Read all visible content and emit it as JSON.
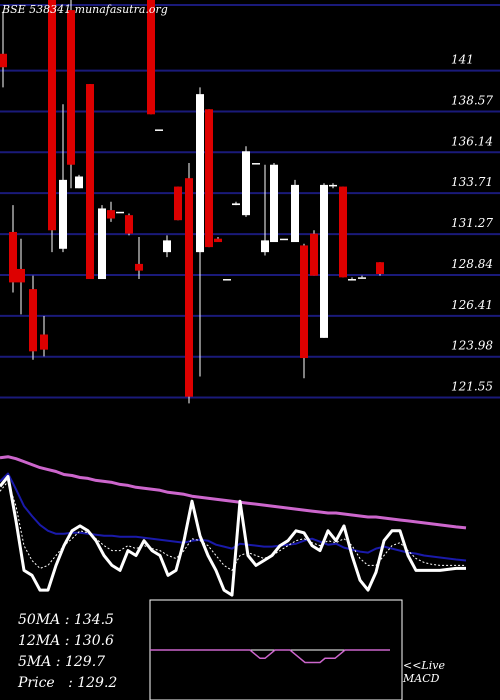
{
  "watermark": "BSE 538341 munafasutra.org",
  "chart_data": {
    "type": "candlestick",
    "ylim": [
      119.5,
      145.2
    ],
    "y_ticks": [
      {
        "label": "141",
        "value": 141
      },
      {
        "label": "138.57",
        "value": 138.57
      },
      {
        "label": "136.14",
        "value": 136.14
      },
      {
        "label": "133.71",
        "value": 133.71
      },
      {
        "label": "131.27",
        "value": 131.27
      },
      {
        "label": "128.84",
        "value": 128.84
      },
      {
        "label": "126.41",
        "value": 126.41
      },
      {
        "label": "123.98",
        "value": 123.98
      },
      {
        "label": "121.55",
        "value": 121.55
      }
    ],
    "up_color": "#ffffff",
    "down_color": "#dd0000",
    "grid_color": "#1a1a7a",
    "candles": [
      {
        "x": 3,
        "open": 142.0,
        "high": 144.5,
        "low": 140.0,
        "close": 141.2
      },
      {
        "x": 13,
        "open": 131.4,
        "high": 133.0,
        "low": 127.8,
        "close": 128.4
      },
      {
        "x": 21,
        "open": 129.2,
        "high": 131.0,
        "low": 126.5,
        "close": 128.4
      },
      {
        "x": 33,
        "open": 128.0,
        "high": 128.8,
        "low": 123.8,
        "close": 124.3
      },
      {
        "x": 44,
        "open": 125.3,
        "high": 126.4,
        "low": 124.0,
        "close": 124.4
      },
      {
        "x": 52,
        "open": 145.2,
        "high": 145.2,
        "low": 130.2,
        "close": 131.5
      },
      {
        "x": 63,
        "open": 130.4,
        "high": 139.0,
        "low": 130.2,
        "close": 134.5
      },
      {
        "x": 71,
        "open": 144.6,
        "high": 145.2,
        "low": 134.0,
        "close": 135.4
      },
      {
        "x": 79,
        "open": 134.0,
        "high": 134.8,
        "low": 134.0,
        "close": 134.7
      },
      {
        "x": 90,
        "open": 140.2,
        "high": 140.2,
        "low": 128.6,
        "close": 128.6
      },
      {
        "x": 102,
        "open": 128.6,
        "high": 133.0,
        "low": 128.6,
        "close": 132.8
      },
      {
        "x": 111,
        "open": 132.7,
        "high": 133.2,
        "low": 132.0,
        "close": 132.2
      },
      {
        "x": 120,
        "open": 132.6,
        "high": 132.6,
        "low": 132.6,
        "close": 132.6
      },
      {
        "x": 129,
        "open": 132.4,
        "high": 132.5,
        "low": 131.2,
        "close": 131.3
      },
      {
        "x": 139,
        "open": 129.5,
        "high": 131.1,
        "low": 128.6,
        "close": 129.1
      },
      {
        "x": 151,
        "open": 145.2,
        "high": 145.2,
        "low": 138.4,
        "close": 138.4
      },
      {
        "x": 159,
        "open": 137.5,
        "high": 137.5,
        "low": 137.5,
        "close": 137.5
      },
      {
        "x": 167,
        "open": 130.2,
        "high": 131.2,
        "low": 129.9,
        "close": 130.9
      },
      {
        "x": 178,
        "open": 134.1,
        "high": 134.1,
        "low": 132.1,
        "close": 132.1
      },
      {
        "x": 189,
        "open": 134.6,
        "high": 135.5,
        "low": 121.2,
        "close": 121.6
      },
      {
        "x": 200,
        "open": 130.2,
        "high": 140.0,
        "low": 122.8,
        "close": 139.6
      },
      {
        "x": 209,
        "open": 138.7,
        "high": 138.7,
        "low": 130.5,
        "close": 130.5
      },
      {
        "x": 218,
        "open": 131.0,
        "high": 131.1,
        "low": 130.8,
        "close": 130.8
      },
      {
        "x": 227,
        "open": 128.6,
        "high": 128.6,
        "low": 128.6,
        "close": 128.6
      },
      {
        "x": 236,
        "open": 133.0,
        "high": 133.2,
        "low": 133.0,
        "close": 133.1
      },
      {
        "x": 246,
        "open": 132.4,
        "high": 136.5,
        "low": 132.3,
        "close": 136.2
      },
      {
        "x": 256,
        "open": 135.5,
        "high": 135.5,
        "low": 135.5,
        "close": 135.5
      },
      {
        "x": 265,
        "open": 130.2,
        "high": 135.4,
        "low": 130.0,
        "close": 130.9
      },
      {
        "x": 274,
        "open": 130.8,
        "high": 135.5,
        "low": 130.8,
        "close": 135.4
      },
      {
        "x": 284,
        "open": 131.0,
        "high": 131.0,
        "low": 131.0,
        "close": 131.0
      },
      {
        "x": 295,
        "open": 130.8,
        "high": 134.5,
        "low": 130.8,
        "close": 134.2
      },
      {
        "x": 304,
        "open": 130.6,
        "high": 130.7,
        "low": 122.7,
        "close": 123.9
      },
      {
        "x": 314,
        "open": 131.3,
        "high": 131.5,
        "low": 128.8,
        "close": 128.8
      },
      {
        "x": 324,
        "open": 125.1,
        "high": 134.3,
        "low": 125.1,
        "close": 134.2
      },
      {
        "x": 333,
        "open": 134.2,
        "high": 134.3,
        "low": 134.0,
        "close": 134.2
      },
      {
        "x": 343,
        "open": 134.1,
        "high": 134.1,
        "low": 128.7,
        "close": 128.7
      },
      {
        "x": 352,
        "open": 128.6,
        "high": 128.7,
        "low": 128.6,
        "close": 128.6
      },
      {
        "x": 362,
        "open": 128.7,
        "high": 128.8,
        "low": 128.7,
        "close": 128.7
      },
      {
        "x": 380,
        "open": 129.6,
        "high": 129.6,
        "low": 128.8,
        "close": 128.9
      }
    ],
    "indicators": {
      "ylim": [
        0,
        170
      ],
      "x": [
        0,
        8,
        16,
        24,
        32,
        40,
        48,
        56,
        64,
        72,
        80,
        88,
        96,
        104,
        112,
        120,
        128,
        136,
        144,
        152,
        160,
        168,
        176,
        184,
        192,
        200,
        208,
        216,
        224,
        232,
        240,
        248,
        256,
        264,
        272,
        280,
        288,
        296,
        304,
        312,
        320,
        328,
        336,
        344,
        352,
        360,
        368,
        376,
        384,
        392,
        400,
        408,
        416,
        424,
        432,
        440,
        448,
        456,
        466
      ],
      "series": [
        {
          "name": "50MA",
          "color": "#cc66cc",
          "width": 3,
          "values": [
            144,
            145,
            143,
            140,
            137,
            134,
            132,
            130,
            127,
            126,
            124,
            123,
            121,
            120,
            119,
            117,
            116,
            114,
            113,
            112,
            111,
            109,
            108,
            107,
            105,
            104,
            103,
            102,
            101,
            100,
            99,
            98,
            97,
            96,
            95,
            94,
            93,
            92,
            91,
            90,
            89,
            88,
            88,
            87,
            86,
            85,
            84,
            84,
            83,
            82,
            81,
            80,
            79,
            78,
            77,
            76,
            75,
            74,
            73
          ]
        },
        {
          "name": "12MA",
          "color": "#1a1aaa",
          "width": 2,
          "values": [
            120,
            128,
            112,
            95,
            85,
            76,
            70,
            67,
            67,
            68,
            68,
            67,
            66,
            65,
            65,
            64,
            64,
            64,
            63,
            62,
            61,
            60,
            59,
            58,
            60,
            61,
            60,
            56,
            54,
            52,
            57,
            56,
            55,
            54,
            54,
            55,
            56,
            57,
            60,
            62,
            59,
            56,
            57,
            53,
            51,
            49,
            48,
            52,
            54,
            52,
            50,
            48,
            47,
            45,
            44,
            43,
            42,
            41,
            40
          ]
        },
        {
          "name": "5MA",
          "color": "#ffffff",
          "width": 3,
          "values": [
            115,
            125,
            80,
            30,
            25,
            10,
            10,
            35,
            55,
            70,
            75,
            70,
            60,
            45,
            35,
            30,
            50,
            45,
            60,
            50,
            45,
            25,
            30,
            60,
            100,
            65,
            45,
            30,
            10,
            5,
            100,
            45,
            35,
            40,
            45,
            55,
            60,
            70,
            68,
            55,
            50,
            70,
            60,
            75,
            45,
            20,
            10,
            28,
            60,
            70,
            70,
            45,
            30,
            30,
            30,
            30,
            31,
            32,
            32
          ]
        },
        {
          "name": "Price",
          "color": "#ffffff",
          "width": 1,
          "dash": "2,2",
          "values": [
            110,
            120,
            95,
            55,
            40,
            32,
            35,
            45,
            55,
            62,
            70,
            68,
            62,
            55,
            50,
            50,
            55,
            52,
            55,
            52,
            50,
            45,
            42,
            50,
            62,
            60,
            55,
            45,
            35,
            30,
            45,
            48,
            45,
            42,
            45,
            50,
            55,
            60,
            62,
            58,
            55,
            60,
            58,
            62,
            55,
            42,
            35,
            35,
            45,
            55,
            58,
            50,
            42,
            38,
            36,
            35,
            35,
            35,
            35
          ]
        }
      ]
    },
    "macd": {
      "ylim": [
        -12,
        12
      ],
      "macd_color": "#cc66cc",
      "signal_color": "#cc66cc",
      "x": [
        150,
        160,
        170,
        180,
        190,
        200,
        210,
        220,
        230,
        240,
        250,
        255,
        260,
        265,
        270,
        275,
        280,
        285,
        290,
        295,
        300,
        305,
        310,
        315,
        320,
        325,
        330,
        335,
        340,
        345,
        350,
        360,
        370,
        380,
        390
      ],
      "macd": [
        0,
        0,
        0,
        0,
        0,
        0,
        0,
        0,
        0,
        0,
        0,
        -1,
        -2,
        -2,
        -1,
        0,
        0,
        0,
        0,
        -1,
        -2,
        -3,
        -3,
        -3,
        -3,
        -2,
        -2,
        -2,
        -1,
        0,
        0,
        0,
        0,
        0,
        0
      ],
      "signal": [
        0,
        0,
        0,
        0,
        0,
        0,
        0,
        0,
        0,
        0,
        0,
        0,
        0,
        0,
        0,
        0,
        0,
        0,
        0,
        0,
        0,
        0,
        0,
        0,
        0,
        0,
        0,
        0,
        0,
        0,
        0,
        0,
        0,
        0,
        0
      ]
    }
  },
  "stats": {
    "ma50": "50MA : 134.5",
    "ma12": "12MA : 130.6",
    "ma5": "5MA : 129.7",
    "price": "Price   : 129.2"
  },
  "macd_label": {
    "line1": "<<Live",
    "line2": "MACD"
  }
}
